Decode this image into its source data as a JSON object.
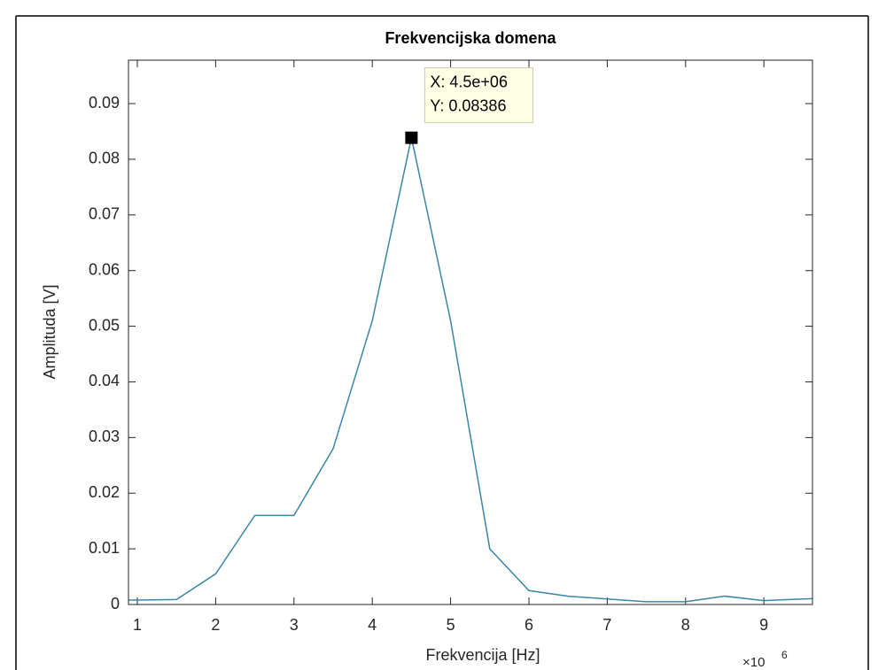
{
  "chart_data": {
    "type": "line",
    "title": "Frekvencijska domena",
    "x_label": "Frekvencija [Hz]",
    "y_label": "Amplituda [V]",
    "x_multiplier": {
      "base": "×10",
      "exponent": "6"
    },
    "x": [
      500000,
      1000000,
      1500000,
      2000000,
      2500000,
      3000000,
      3500000,
      4000000,
      4500000,
      5000000,
      5500000,
      6000000,
      6500000,
      7000000,
      7500000,
      8000000,
      8500000,
      9000000,
      9500000,
      10000000
    ],
    "series": [
      {
        "color": "#3a86a8",
        "values": [
          0.0008,
          0.0008,
          0.0009,
          0.0055,
          0.016,
          0.016,
          0.028,
          0.051,
          0.08386,
          0.051,
          0.01,
          0.0025,
          0.0015,
          0.001,
          0.0005,
          0.0005,
          0.0015,
          0.0007,
          0.001,
          0.0012
        ]
      }
    ],
    "xlim": [
      887000,
      9620000
    ],
    "ylim": [
      0,
      0.0978
    ],
    "xticks": [
      {
        "value": 1000000,
        "label": "1"
      },
      {
        "value": 2000000,
        "label": "2"
      },
      {
        "value": 3000000,
        "label": "3"
      },
      {
        "value": 4000000,
        "label": "4"
      },
      {
        "value": 5000000,
        "label": "5"
      },
      {
        "value": 6000000,
        "label": "6"
      },
      {
        "value": 7000000,
        "label": "7"
      },
      {
        "value": 8000000,
        "label": "8"
      },
      {
        "value": 9000000,
        "label": "9"
      }
    ],
    "yticks": [
      0,
      0.01,
      0.02,
      0.03,
      0.04,
      0.05,
      0.06,
      0.07,
      0.08,
      0.09
    ],
    "grid": false,
    "datatip": {
      "point_index": 8,
      "x_text": "X: 4.5e+06",
      "y_text": "Y: 0.08386"
    }
  }
}
